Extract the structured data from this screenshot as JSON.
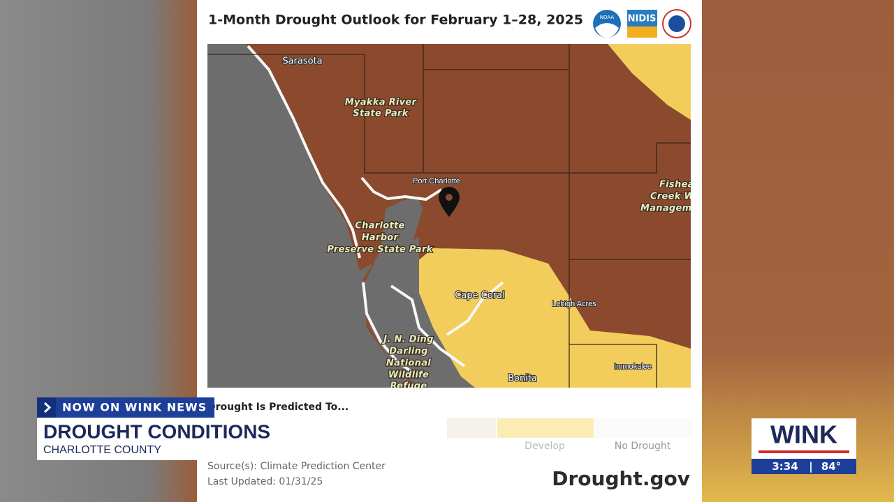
{
  "card": {
    "title": "1-Month Drought Outlook for February 1–28, 2025",
    "logos": [
      "NOAA",
      "NIDIS"
    ]
  },
  "map": {
    "labels": [
      "Sarasota",
      "Myakka River",
      "State Park",
      "Port Charlotte",
      "Charlotte",
      "Harbor",
      "Preserve State Park",
      "Fishea",
      "Creek W",
      "Managem",
      "Cape Coral",
      "Lehigh Acres",
      "J. N. Ding",
      "Darling",
      "National",
      "Wildlife",
      "Refuge",
      "Bonita",
      "Immokalee"
    ]
  },
  "legend": {
    "title": "Drought Is Predicted To...",
    "items": [
      "Develop",
      "No Drought"
    ]
  },
  "footer": {
    "source": "Source(s): Climate Prediction Center",
    "updated": "Last Updated: 01/31/25",
    "site": "Drought.gov"
  },
  "broadcast": {
    "tag": "NOW ON WINK NEWS",
    "headline": "DROUGHT CONDITIONS",
    "subheadline": "CHARLOTTE COUNTY",
    "station": "WINK",
    "time": "3:34",
    "separator": "|",
    "temperature": "84°"
  }
}
